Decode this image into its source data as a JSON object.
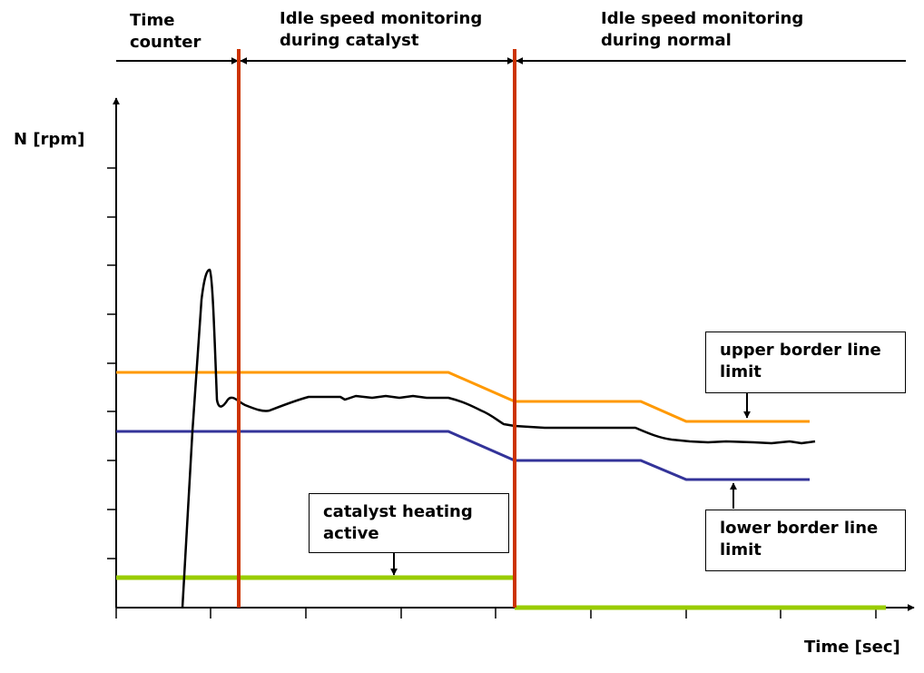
{
  "phases": [
    {
      "text": "Time\ncounter"
    },
    {
      "text": "Idle speed monitoring\nduring catalyst"
    },
    {
      "text": "Idle speed monitoring\nduring normal"
    }
  ],
  "axes": {
    "y_label": "N [rpm]",
    "x_label": "Time [sec]"
  },
  "annotations": {
    "upper": "upper border line\nlimit",
    "lower": "lower border line\nlimit",
    "catalyst": "catalyst heating\nactive"
  },
  "colors": {
    "phase_divider": "#cc3300",
    "upper_limit": "#ff9900",
    "lower_limit": "#333399",
    "speed_signal": "#000000",
    "catalyst_signal": "#99cc00"
  }
}
